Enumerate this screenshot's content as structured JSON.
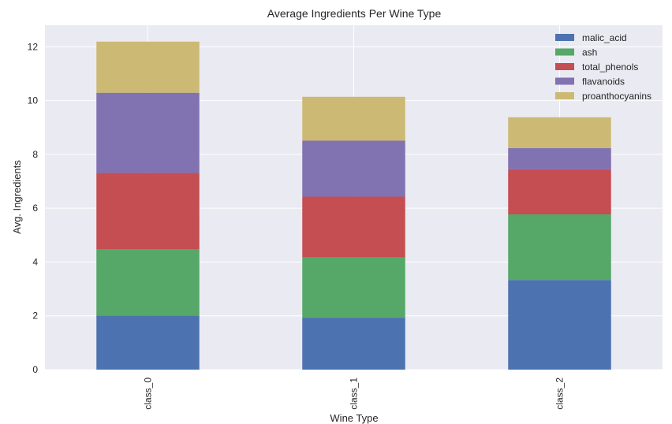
{
  "chart_data": {
    "type": "bar",
    "stacked": true,
    "title": "Average Ingredients Per Wine Type",
    "xlabel": "Wine Type",
    "ylabel": "Avg. Ingredients",
    "categories": [
      "class_0",
      "class_1",
      "class_2"
    ],
    "ylim": [
      0,
      12.8
    ],
    "yticks": [
      0,
      2,
      4,
      6,
      8,
      10,
      12
    ],
    "grid": true,
    "legend_position": "top-right",
    "background": "#eaeaf2",
    "series": [
      {
        "name": "malic_acid",
        "color": "#4c72b0",
        "values": [
          2.01,
          1.93,
          3.33
        ]
      },
      {
        "name": "ash",
        "color": "#55a868",
        "values": [
          2.46,
          2.24,
          2.44
        ]
      },
      {
        "name": "total_phenols",
        "color": "#c44e52",
        "values": [
          2.84,
          2.26,
          1.68
        ]
      },
      {
        "name": "flavanoids",
        "color": "#8172b2",
        "values": [
          2.98,
          2.08,
          0.78
        ]
      },
      {
        "name": "proanthocyanins",
        "color": "#ccb974",
        "values": [
          1.9,
          1.63,
          1.15
        ]
      }
    ]
  }
}
